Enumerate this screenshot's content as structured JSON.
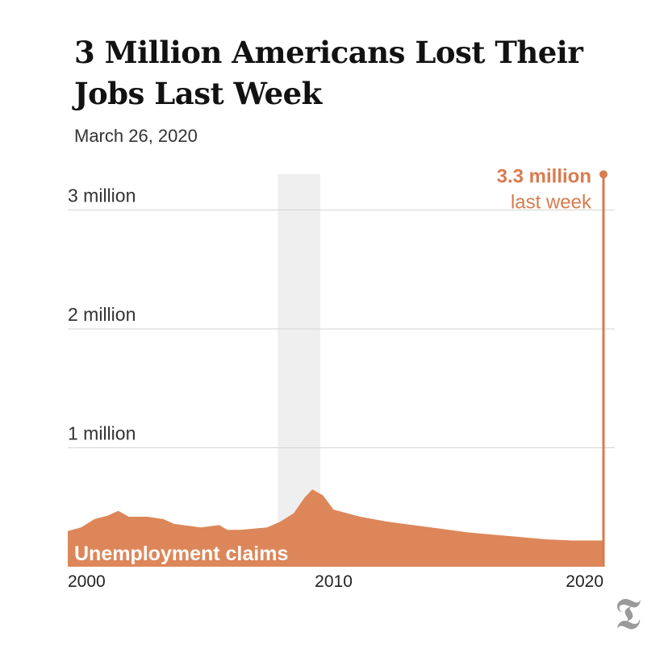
{
  "header": {
    "title": "3 Million Americans Lost Their Jobs Last Week",
    "date": "March 26, 2020"
  },
  "chart_data": {
    "type": "area",
    "series": [
      {
        "name": "Unemployment claims",
        "x": [
          2000.0,
          2000.5,
          2001.0,
          2001.5,
          2001.9,
          2002.3,
          2003.0,
          2003.6,
          2004.0,
          2005.0,
          2005.7,
          2006.0,
          2006.5,
          2007.0,
          2007.5,
          2008.0,
          2008.5,
          2008.9,
          2009.2,
          2009.6,
          2010.0,
          2011.0,
          2012.0,
          2013.0,
          2014.0,
          2015.0,
          2016.0,
          2017.0,
          2018.0,
          2019.0,
          2020.0,
          2020.1,
          2020.15,
          2020.2
        ],
        "values": [
          300000,
          330000,
          400000,
          430000,
          470000,
          420000,
          420000,
          400000,
          360000,
          330000,
          350000,
          310000,
          310000,
          320000,
          330000,
          380000,
          450000,
          580000,
          650000,
          600000,
          480000,
          420000,
          380000,
          350000,
          320000,
          290000,
          270000,
          250000,
          230000,
          220000,
          220000,
          220000,
          280000,
          3300000
        ]
      }
    ],
    "series_label": "Unemployment claims",
    "x_ticks": [
      "2000",
      "2010",
      "2020"
    ],
    "y_ticks": [
      "1 million",
      "2 million",
      "3 million"
    ],
    "y_tick_values": [
      1000000,
      2000000,
      3000000
    ],
    "xlim": [
      2000,
      2020.5
    ],
    "ylim": [
      0,
      3300000
    ],
    "recession_shading": [
      2007.9,
      2009.5
    ],
    "annotation": {
      "value": "3.3 million",
      "label": "last week"
    },
    "colors": {
      "area": "#dd8659",
      "annotation": "#d97b4e",
      "recession": "#efefef",
      "grid": "#d4d4d4"
    }
  }
}
